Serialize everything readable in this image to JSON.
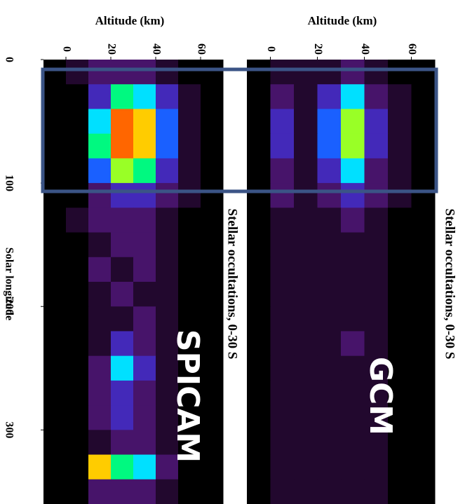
{
  "chart_data": [
    {
      "type": "heatmap",
      "label": "SPICAM",
      "subtitle": "Stellar occultations, 0-30 S",
      "x_label": "Altitude (km)",
      "y_label": "Solar longitude",
      "xlim": [
        -10,
        70
      ],
      "xticks": [
        0,
        20,
        40,
        60
      ],
      "ylim": [
        0,
        360
      ],
      "yticks": [
        0,
        100,
        200,
        300
      ],
      "x_bins": [
        -10,
        0,
        10,
        20,
        30,
        40,
        50,
        60,
        70
      ],
      "y_bins": [
        0,
        20,
        40,
        60,
        80,
        100,
        120,
        140,
        160,
        180,
        200,
        220,
        240,
        260,
        280,
        300,
        320,
        340,
        360
      ],
      "zlim": [
        0,
        10
      ],
      "colormap": [
        "#000000",
        "#2a0a3a",
        "#5a1a8a",
        "#2040ff",
        "#00e0ff",
        "#00ff60",
        "#ffff00",
        "#ff8000",
        "#ff0000"
      ],
      "values": [
        [
          0,
          1,
          2,
          2,
          2,
          1,
          0,
          0
        ],
        [
          0,
          0,
          3,
          6,
          5,
          3,
          1,
          0
        ],
        [
          0,
          0,
          5,
          9,
          8,
          4,
          1,
          0
        ],
        [
          0,
          0,
          6,
          9,
          8,
          4,
          1,
          0
        ],
        [
          0,
          0,
          4,
          7,
          6,
          3,
          1,
          0
        ],
        [
          0,
          0,
          2,
          3,
          3,
          2,
          1,
          0
        ],
        [
          0,
          1,
          2,
          2,
          2,
          1,
          0,
          0
        ],
        [
          0,
          0,
          1,
          2,
          2,
          1,
          0,
          0
        ],
        [
          0,
          0,
          2,
          1,
          2,
          1,
          0,
          0
        ],
        [
          0,
          0,
          1,
          2,
          1,
          1,
          0,
          0
        ],
        [
          0,
          0,
          1,
          1,
          2,
          1,
          0,
          0
        ],
        [
          0,
          0,
          1,
          3,
          2,
          1,
          0,
          0
        ],
        [
          0,
          0,
          2,
          5,
          3,
          1,
          0,
          0
        ],
        [
          0,
          0,
          2,
          3,
          2,
          1,
          0,
          0
        ],
        [
          0,
          0,
          2,
          3,
          2,
          1,
          0,
          0
        ],
        [
          0,
          0,
          1,
          2,
          2,
          1,
          0,
          0
        ],
        [
          0,
          0,
          8,
          6,
          5,
          2,
          0,
          0
        ],
        [
          0,
          0,
          2,
          2,
          2,
          1,
          0,
          0
        ]
      ]
    },
    {
      "type": "heatmap",
      "label": "GCM",
      "subtitle": "Stellar occultations, 0-30 S",
      "x_label": "Altitude (km)",
      "xlim": [
        -10,
        70
      ],
      "xticks": [
        0,
        20,
        40,
        60
      ],
      "ylim": [
        0,
        360
      ],
      "x_bins": [
        -10,
        0,
        10,
        20,
        30,
        40,
        50,
        60,
        70
      ],
      "y_bins": [
        0,
        20,
        40,
        60,
        80,
        100,
        120,
        140,
        160,
        180,
        200,
        220,
        240,
        260,
        280,
        300,
        320,
        340,
        360
      ],
      "zlim": [
        0,
        10
      ],
      "colormap": [
        "#000000",
        "#2a0a3a",
        "#5a1a8a",
        "#2040ff",
        "#00e0ff",
        "#00ff60",
        "#ffff00",
        "#ff8000",
        "#ff0000"
      ],
      "values": [
        [
          0,
          1,
          1,
          1,
          2,
          1,
          0,
          0
        ],
        [
          0,
          2,
          1,
          3,
          5,
          2,
          1,
          0
        ],
        [
          0,
          3,
          1,
          4,
          7,
          3,
          1,
          0
        ],
        [
          0,
          3,
          1,
          4,
          7,
          3,
          1,
          0
        ],
        [
          0,
          2,
          1,
          3,
          5,
          2,
          1,
          0
        ],
        [
          0,
          2,
          1,
          2,
          3,
          2,
          1,
          0
        ],
        [
          0,
          1,
          1,
          1,
          2,
          1,
          0,
          0
        ],
        [
          0,
          1,
          1,
          1,
          1,
          1,
          0,
          0
        ],
        [
          0,
          1,
          1,
          1,
          1,
          1,
          0,
          0
        ],
        [
          0,
          1,
          1,
          1,
          1,
          1,
          0,
          0
        ],
        [
          0,
          1,
          1,
          1,
          1,
          1,
          0,
          0
        ],
        [
          0,
          1,
          1,
          1,
          2,
          1,
          0,
          0
        ],
        [
          0,
          1,
          1,
          1,
          1,
          1,
          0,
          0
        ],
        [
          0,
          1,
          1,
          1,
          1,
          1,
          0,
          0
        ],
        [
          0,
          1,
          1,
          1,
          1,
          1,
          0,
          0
        ],
        [
          0,
          1,
          1,
          1,
          1,
          1,
          0,
          0
        ],
        [
          0,
          1,
          1,
          1,
          1,
          1,
          0,
          0
        ],
        [
          0,
          1,
          1,
          1,
          1,
          1,
          0,
          0
        ]
      ]
    }
  ]
}
